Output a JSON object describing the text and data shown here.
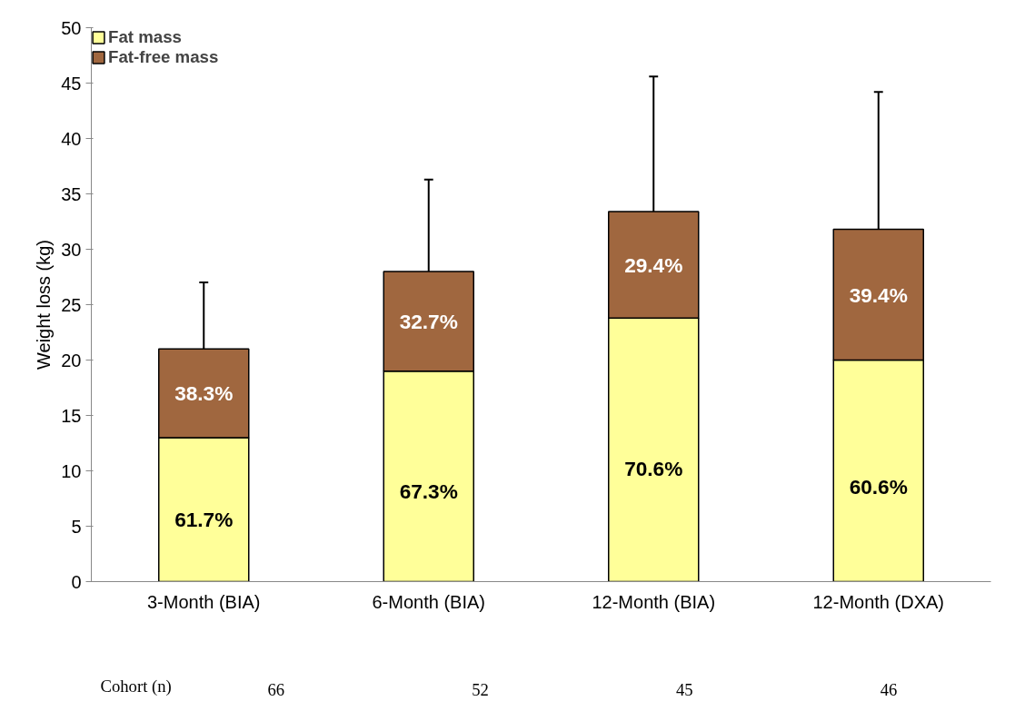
{
  "chart_data": {
    "type": "bar",
    "stacked": true,
    "ylabel": "Weight loss (kg)",
    "categories": [
      "3-Month (BIA)",
      "6-Month (BIA)",
      "12-Month (BIA)",
      "12-Month (DXA)"
    ],
    "series": [
      {
        "name": "Fat mass",
        "color": "#ffff99",
        "values": [
          13.0,
          19.0,
          23.8,
          20.0
        ]
      },
      {
        "name": "Fat-free mass",
        "color": "#a0673f",
        "values": [
          8.0,
          9.0,
          9.6,
          11.8
        ],
        "errors": [
          [
            21.0,
            27.0
          ],
          [
            28.0,
            36.3
          ],
          [
            33.4,
            45.6
          ],
          [
            31.8,
            44.2
          ]
        ]
      }
    ],
    "ylim": [
      0,
      50
    ],
    "yticks": [
      0,
      5,
      10,
      15,
      20,
      25,
      30,
      35,
      40,
      45,
      50
    ],
    "grid": false,
    "legend": "top left",
    "annotations": [
      "61.7%",
      "67.3%",
      "70.6%",
      "60.6%",
      "38.3%",
      "32.7%",
      "29.4%",
      "39.4%",
      "Cohort (n)",
      "66",
      "52",
      "45",
      "46"
    ]
  }
}
